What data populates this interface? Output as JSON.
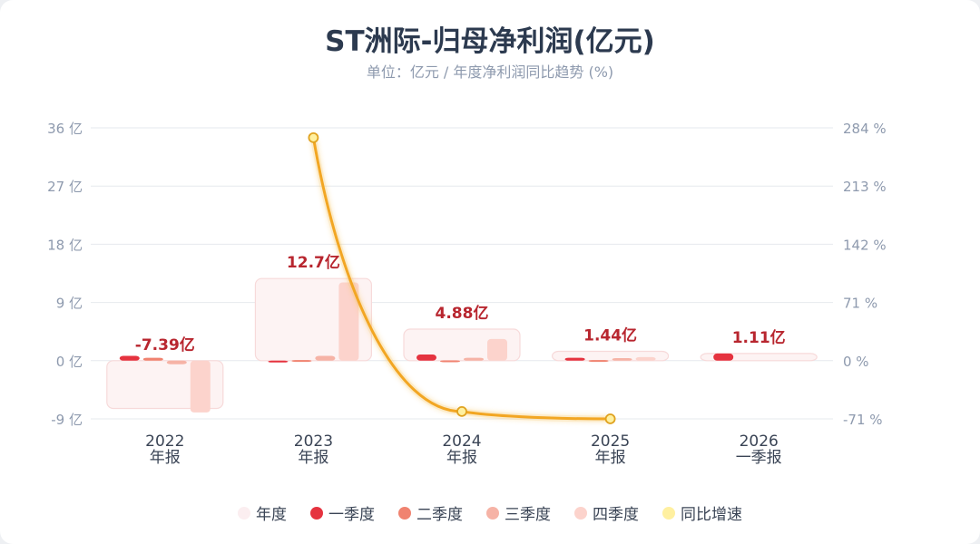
{
  "title": "ST洲际-归母净利润(亿元)",
  "subtitle": "单位：亿元 / 年度净利润同比趋势 (%)",
  "chart_data": {
    "type": "bar",
    "categories": [
      {
        "year": "2022",
        "period": "年报"
      },
      {
        "year": "2023",
        "period": "年报"
      },
      {
        "year": "2024",
        "period": "年报"
      },
      {
        "year": "2025",
        "period": "年报"
      },
      {
        "year": "2026",
        "period": "一季报"
      }
    ],
    "annual_labels": [
      "-7.39亿",
      "12.7亿",
      "4.88亿",
      "1.44亿",
      "1.11亿"
    ],
    "series": [
      {
        "name": "年度",
        "color": "#fcebeb",
        "values": [
          -7.39,
          12.7,
          4.88,
          1.44,
          1.11
        ]
      },
      {
        "name": "一季度",
        "color": "#e5333f",
        "values": [
          0.75,
          -0.2,
          0.95,
          0.45,
          1.11
        ]
      },
      {
        "name": "二季度",
        "color": "#f08370",
        "values": [
          0.45,
          0.1,
          0.05,
          0.1,
          null
        ]
      },
      {
        "name": "三季度",
        "color": "#f6b3a6",
        "values": [
          -0.55,
          0.75,
          0.45,
          0.4,
          null
        ]
      },
      {
        "name": "四季度",
        "color": "#fcd3cc",
        "values": [
          -8.0,
          12.1,
          3.35,
          0.55,
          null
        ]
      }
    ],
    "line_series": {
      "name": "同比增速",
      "color": "#f2a623",
      "marker_color": "#fff0a0",
      "values": [
        null,
        272,
        -62,
        -71,
        null
      ]
    },
    "y_left": {
      "ticks": [
        -9,
        0,
        9,
        18,
        27,
        36
      ],
      "labels": [
        "-9 亿",
        "0 亿",
        "9 亿",
        "18 亿",
        "27 亿",
        "36 亿"
      ],
      "range": [
        -9,
        36
      ]
    },
    "y_right": {
      "ticks": [
        -71,
        0,
        71,
        142,
        213,
        284
      ],
      "labels": [
        "-71 %",
        "0 %",
        "71 %",
        "142 %",
        "213 %",
        "284 %"
      ],
      "range": [
        -71,
        284
      ]
    },
    "grid": true,
    "legend_position": "bottom"
  },
  "legend": [
    {
      "label": "年度",
      "color": "#fbeef0"
    },
    {
      "label": "一季度",
      "color": "#e5333f"
    },
    {
      "label": "二季度",
      "color": "#f08370"
    },
    {
      "label": "三季度",
      "color": "#f6b3a6"
    },
    {
      "label": "四季度",
      "color": "#fcd3cc"
    },
    {
      "label": "同比增速",
      "color": "#fff0a0"
    }
  ]
}
